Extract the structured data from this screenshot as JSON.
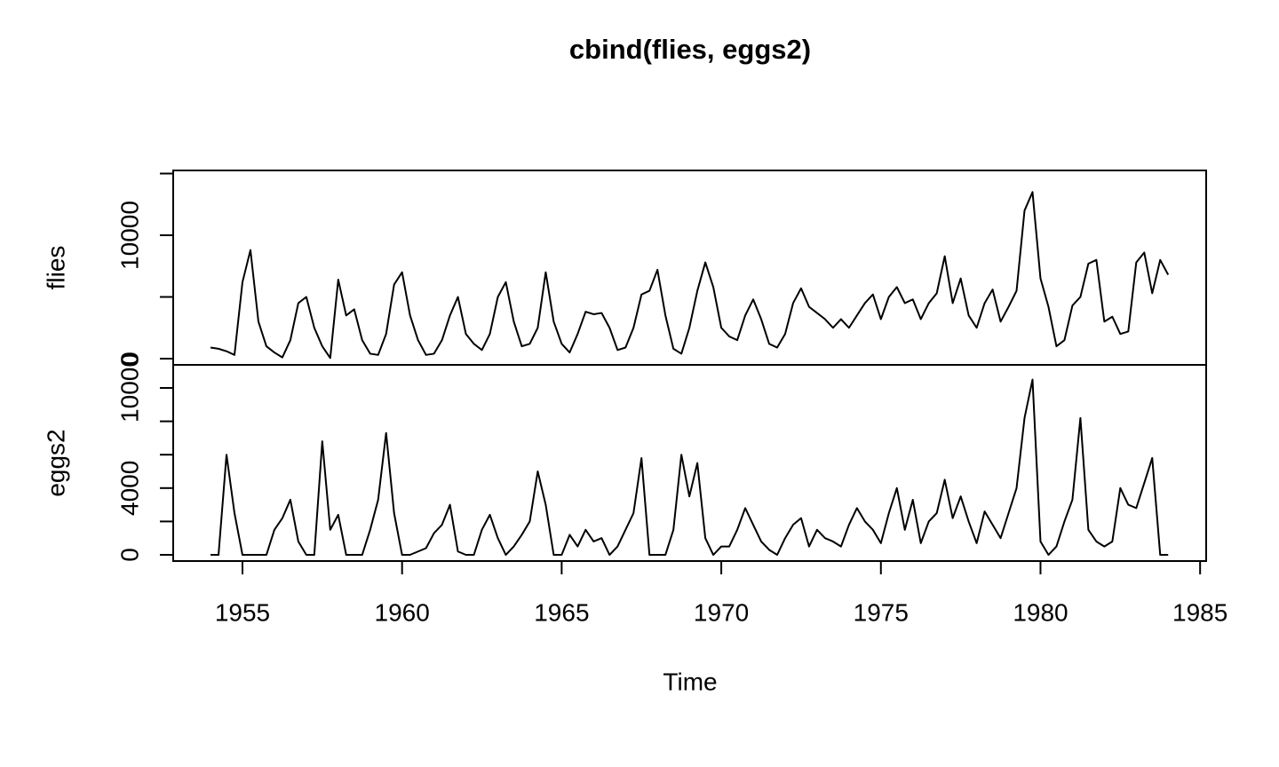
{
  "chart_data": {
    "type": "line",
    "title": "cbind(flies, eggs2)",
    "x_label": "Time",
    "xlim": [
      1952.83,
      1985.19
    ],
    "xticks": [
      1955,
      1960,
      1965,
      1970,
      1975,
      1980,
      1985
    ],
    "x": [
      1954,
      1954.25,
      1954.5,
      1954.75,
      1955,
      1955.25,
      1955.5,
      1955.75,
      1956,
      1956.25,
      1956.5,
      1956.75,
      1957,
      1957.25,
      1957.5,
      1957.75,
      1958,
      1958.25,
      1958.5,
      1958.75,
      1959,
      1959.25,
      1959.5,
      1959.75,
      1960,
      1960.25,
      1960.5,
      1960.75,
      1961,
      1961.25,
      1961.5,
      1961.75,
      1962,
      1962.25,
      1962.5,
      1962.75,
      1963,
      1963.25,
      1963.5,
      1963.75,
      1964,
      1964.25,
      1964.5,
      1964.75,
      1965,
      1965.25,
      1965.5,
      1965.75,
      1966,
      1966.25,
      1966.5,
      1966.75,
      1967,
      1967.25,
      1967.5,
      1967.75,
      1968,
      1968.25,
      1968.5,
      1968.75,
      1969,
      1969.25,
      1969.5,
      1969.75,
      1970,
      1970.25,
      1970.5,
      1970.75,
      1971,
      1971.25,
      1971.5,
      1971.75,
      1972,
      1972.25,
      1972.5,
      1972.75,
      1973,
      1973.25,
      1973.5,
      1973.75,
      1974,
      1974.25,
      1974.5,
      1974.75,
      1975,
      1975.25,
      1975.5,
      1975.75,
      1976,
      1976.25,
      1976.5,
      1976.75,
      1977,
      1977.25,
      1977.5,
      1977.75,
      1978,
      1978.25,
      1978.5,
      1978.75,
      1979,
      1979.25,
      1979.5,
      1979.75,
      1980,
      1980.25,
      1980.5,
      1980.75,
      1981,
      1981.25,
      1981.5,
      1981.75,
      1982,
      1982.25,
      1982.5,
      1982.75,
      1983,
      1983.25,
      1983.5,
      1983.75,
      1984
    ],
    "series": [
      {
        "name": "flies",
        "color": "#000000",
        "ylim": [
          -504,
          15252
        ],
        "yticks": [
          0,
          10000
        ],
        "yminorticks": [
          5000,
          15000
        ],
        "values": [
          900,
          800,
          600,
          300,
          6200,
          8800,
          3000,
          1000,
          500,
          100,
          1500,
          4500,
          5000,
          2500,
          1000,
          50,
          6400,
          3500,
          4000,
          1500,
          400,
          300,
          2000,
          6000,
          7000,
          3500,
          1500,
          300,
          400,
          1500,
          3500,
          5000,
          2000,
          1200,
          700,
          2000,
          5000,
          6200,
          3000,
          1000,
          1200,
          2500,
          7000,
          3000,
          1200,
          500,
          2000,
          3800,
          3600,
          3700,
          2500,
          700,
          900,
          2500,
          5200,
          5500,
          7200,
          3500,
          800,
          400,
          2500,
          5500,
          7800,
          5800,
          2500,
          1800,
          1500,
          3500,
          4800,
          3200,
          1200,
          900,
          2000,
          4500,
          5700,
          4200,
          3700,
          3200,
          2500,
          3200,
          2500,
          3500,
          4500,
          5200,
          3200,
          5000,
          5800,
          4500,
          4800,
          3200,
          4500,
          5300,
          8300,
          4500,
          6500,
          3500,
          2500,
          4500,
          5600,
          3000,
          4200,
          5500,
          12000,
          13500,
          6500,
          4200,
          1000,
          1500,
          4300,
          5000,
          7700,
          8000,
          3000,
          3400,
          2000,
          2200,
          7800,
          8600,
          5300,
          8000,
          6800
        ]
      },
      {
        "name": "eggs2",
        "color": "#000000",
        "ylim": [
          -372,
          11383
        ],
        "yticks": [
          0,
          4000,
          10000
        ],
        "yminorticks": [
          2000,
          6000,
          8000
        ],
        "values": [
          0,
          0,
          6000,
          2500,
          0,
          0,
          0,
          0,
          1500,
          2200,
          3300,
          800,
          0,
          0,
          6800,
          1500,
          2400,
          0,
          0,
          0,
          1500,
          3300,
          7300,
          2500,
          0,
          0,
          200,
          400,
          1300,
          1800,
          3000,
          200,
          0,
          0,
          1500,
          2400,
          1000,
          0,
          500,
          1200,
          2000,
          5000,
          3000,
          0,
          0,
          1200,
          500,
          1500,
          800,
          1000,
          0,
          500,
          1500,
          2500,
          5800,
          0,
          0,
          0,
          1500,
          6000,
          3500,
          5500,
          1000,
          0,
          500,
          500,
          1500,
          2800,
          1800,
          800,
          300,
          0,
          1000,
          1800,
          2200,
          500,
          1500,
          1000,
          800,
          500,
          1800,
          2800,
          2000,
          1500,
          700,
          2500,
          4000,
          1500,
          3300,
          700,
          2000,
          2500,
          4500,
          2200,
          3500,
          2000,
          700,
          2600,
          1800,
          1000,
          2500,
          4000,
          8200,
          10500,
          800,
          0,
          500,
          2000,
          3300,
          8200,
          1500,
          800,
          500,
          800,
          4000,
          3000,
          2800,
          4300,
          5800,
          0,
          0
        ]
      }
    ]
  }
}
